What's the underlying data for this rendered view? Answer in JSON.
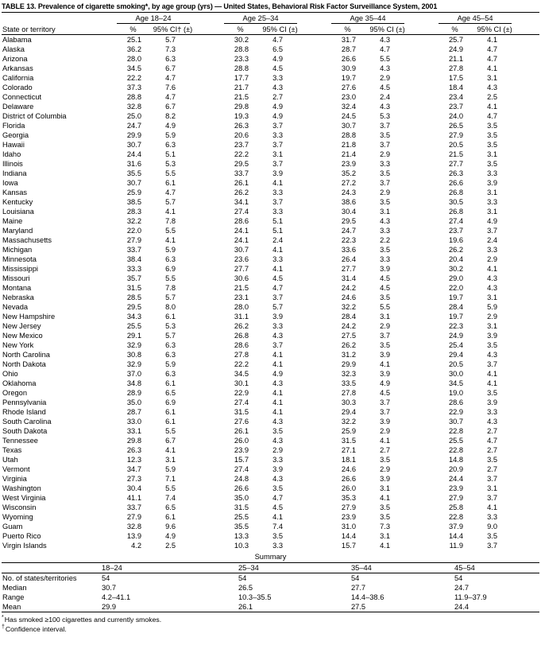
{
  "title": "TABLE 13. Prevalence of cigarette smoking*, by age group (yrs) — United States, Behavioral Risk Factor Surveillance System, 2001",
  "table": {
    "state_col_header": "State or territory",
    "group_headers": [
      "Age 18–24",
      "Age 25–34",
      "Age 35–44",
      "Age 45–54"
    ],
    "sub_headers": {
      "pct": "%",
      "ci": [
        "95% CI† (±)",
        "95% CI (±)",
        "95% CI (±)",
        "95% CI (±)"
      ]
    },
    "rows": [
      {
        "state": "Alabama",
        "values": [
          "25.1",
          "5.7",
          "30.2",
          "4.7",
          "31.7",
          "4.3",
          "25.7",
          "4.1"
        ]
      },
      {
        "state": "Alaska",
        "values": [
          "36.2",
          "7.3",
          "28.8",
          "6.5",
          "28.7",
          "4.7",
          "24.9",
          "4.7"
        ]
      },
      {
        "state": "Arizona",
        "values": [
          "28.0",
          "6.3",
          "23.3",
          "4.9",
          "26.6",
          "5.5",
          "21.1",
          "4.7"
        ]
      },
      {
        "state": "Arkansas",
        "values": [
          "34.5",
          "6.7",
          "28.8",
          "4.5",
          "30.9",
          "4.3",
          "27.8",
          "4.1"
        ]
      },
      {
        "state": "California",
        "values": [
          "22.2",
          "4.7",
          "17.7",
          "3.3",
          "19.7",
          "2.9",
          "17.5",
          "3.1"
        ]
      },
      {
        "state": "Colorado",
        "values": [
          "37.3",
          "7.6",
          "21.7",
          "4.3",
          "27.6",
          "4.5",
          "18.4",
          "4.3"
        ]
      },
      {
        "state": "Connecticut",
        "values": [
          "28.8",
          "4.7",
          "21.5",
          "2.7",
          "23.0",
          "2.4",
          "23.4",
          "2.5"
        ]
      },
      {
        "state": "Delaware",
        "values": [
          "32.8",
          "6.7",
          "29.8",
          "4.9",
          "32.4",
          "4.3",
          "23.7",
          "4.1"
        ]
      },
      {
        "state": "District of Columbia",
        "values": [
          "25.0",
          "8.2",
          "19.3",
          "4.9",
          "24.5",
          "5.3",
          "24.0",
          "4.7"
        ]
      },
      {
        "state": "Florida",
        "values": [
          "24.7",
          "4.9",
          "26.3",
          "3.7",
          "30.7",
          "3.7",
          "26.5",
          "3.5"
        ]
      },
      {
        "state": "Georgia",
        "values": [
          "29.9",
          "5.9",
          "20.6",
          "3.3",
          "28.8",
          "3.5",
          "27.9",
          "3.5"
        ]
      },
      {
        "state": "Hawaii",
        "values": [
          "30.7",
          "6.3",
          "23.7",
          "3.7",
          "21.8",
          "3.7",
          "20.5",
          "3.5"
        ]
      },
      {
        "state": "Idaho",
        "values": [
          "24.4",
          "5.1",
          "22.2",
          "3.1",
          "21.4",
          "2.9",
          "21.5",
          "3.1"
        ]
      },
      {
        "state": "Illinois",
        "values": [
          "31.6",
          "5.3",
          "29.5",
          "3.7",
          "23.9",
          "3.3",
          "27.7",
          "3.5"
        ]
      },
      {
        "state": "Indiana",
        "values": [
          "35.5",
          "5.5",
          "33.7",
          "3.9",
          "35.2",
          "3.5",
          "26.3",
          "3.3"
        ]
      },
      {
        "state": "Iowa",
        "values": [
          "30.7",
          "6.1",
          "26.1",
          "4.1",
          "27.2",
          "3.7",
          "26.6",
          "3.9"
        ]
      },
      {
        "state": "Kansas",
        "values": [
          "25.9",
          "4.7",
          "26.2",
          "3.3",
          "24.3",
          "2.9",
          "26.8",
          "3.1"
        ]
      },
      {
        "state": "Kentucky",
        "values": [
          "38.5",
          "5.7",
          "34.1",
          "3.7",
          "38.6",
          "3.5",
          "30.5",
          "3.3"
        ]
      },
      {
        "state": "Louisiana",
        "values": [
          "28.3",
          "4.1",
          "27.4",
          "3.3",
          "30.4",
          "3.1",
          "26.8",
          "3.1"
        ]
      },
      {
        "state": "Maine",
        "values": [
          "32.2",
          "7.8",
          "28.6",
          "5.1",
          "29.5",
          "4.3",
          "27.4",
          "4.9"
        ]
      },
      {
        "state": "Maryland",
        "values": [
          "22.0",
          "5.5",
          "24.1",
          "5.1",
          "24.7",
          "3.3",
          "23.7",
          "3.7"
        ]
      },
      {
        "state": "Massachusetts",
        "values": [
          "27.9",
          "4.1",
          "24.1",
          "2.4",
          "22.3",
          "2.2",
          "19.6",
          "2.4"
        ]
      },
      {
        "state": "Michigan",
        "values": [
          "33.7",
          "5.9",
          "30.7",
          "4.1",
          "33.6",
          "3.5",
          "26.2",
          "3.3"
        ]
      },
      {
        "state": "Minnesota",
        "values": [
          "38.4",
          "6.3",
          "23.6",
          "3.3",
          "26.4",
          "3.3",
          "20.4",
          "2.9"
        ]
      },
      {
        "state": "Mississippi",
        "values": [
          "33.3",
          "6.9",
          "27.7",
          "4.1",
          "27.7",
          "3.9",
          "30.2",
          "4.1"
        ]
      },
      {
        "state": "Missouri",
        "values": [
          "35.7",
          "5.5",
          "30.6",
          "4.5",
          "31.4",
          "4.5",
          "29.0",
          "4.3"
        ]
      },
      {
        "state": "Montana",
        "values": [
          "31.5",
          "7.8",
          "21.5",
          "4.7",
          "24.2",
          "4.5",
          "22.0",
          "4.3"
        ]
      },
      {
        "state": "Nebraska",
        "values": [
          "28.5",
          "5.7",
          "23.1",
          "3.7",
          "24.6",
          "3.5",
          "19.7",
          "3.1"
        ]
      },
      {
        "state": "Nevada",
        "values": [
          "29.5",
          "8.0",
          "28.0",
          "5.7",
          "32.2",
          "5.5",
          "28.4",
          "5.9"
        ]
      },
      {
        "state": "New Hampshire",
        "values": [
          "34.3",
          "6.1",
          "31.1",
          "3.9",
          "28.4",
          "3.1",
          "19.7",
          "2.9"
        ]
      },
      {
        "state": "New Jersey",
        "values": [
          "25.5",
          "5.3",
          "26.2",
          "3.3",
          "24.2",
          "2.9",
          "22.3",
          "3.1"
        ]
      },
      {
        "state": "New Mexico",
        "values": [
          "29.1",
          "5.7",
          "26.8",
          "4.3",
          "27.5",
          "3.7",
          "24.9",
          "3.9"
        ]
      },
      {
        "state": "New York",
        "values": [
          "32.9",
          "6.3",
          "28.6",
          "3.7",
          "26.2",
          "3.5",
          "25.4",
          "3.5"
        ]
      },
      {
        "state": "North Carolina",
        "values": [
          "30.8",
          "6.3",
          "27.8",
          "4.1",
          "31.2",
          "3.9",
          "29.4",
          "4.3"
        ]
      },
      {
        "state": "North Dakota",
        "values": [
          "32.9",
          "5.9",
          "22.2",
          "4.1",
          "29.9",
          "4.1",
          "20.5",
          "3.7"
        ]
      },
      {
        "state": "Ohio",
        "values": [
          "37.0",
          "6.3",
          "34.5",
          "4.9",
          "32.3",
          "3.9",
          "30.0",
          "4.1"
        ]
      },
      {
        "state": "Oklahoma",
        "values": [
          "34.8",
          "6.1",
          "30.1",
          "4.3",
          "33.5",
          "4.9",
          "34.5",
          "4.1"
        ]
      },
      {
        "state": "Oregon",
        "values": [
          "28.9",
          "6.5",
          "22.9",
          "4.1",
          "27.8",
          "4.5",
          "19.0",
          "3.5"
        ]
      },
      {
        "state": "Pennsylvania",
        "values": [
          "35.0",
          "6.9",
          "27.4",
          "4.1",
          "30.3",
          "3.7",
          "28.6",
          "3.9"
        ]
      },
      {
        "state": "Rhode Island",
        "values": [
          "28.7",
          "6.1",
          "31.5",
          "4.1",
          "29.4",
          "3.7",
          "22.9",
          "3.3"
        ]
      },
      {
        "state": "South Carolina",
        "values": [
          "33.0",
          "6.1",
          "27.6",
          "4.3",
          "32.2",
          "3.9",
          "30.7",
          "4.3"
        ]
      },
      {
        "state": "South Dakota",
        "values": [
          "33.1",
          "5.5",
          "26.1",
          "3.5",
          "25.9",
          "2.9",
          "22.8",
          "2.7"
        ]
      },
      {
        "state": "Tennessee",
        "values": [
          "29.8",
          "6.7",
          "26.0",
          "4.3",
          "31.5",
          "4.1",
          "25.5",
          "4.7"
        ]
      },
      {
        "state": "Texas",
        "values": [
          "26.3",
          "4.1",
          "23.9",
          "2.9",
          "27.1",
          "2.7",
          "22.8",
          "2.7"
        ]
      },
      {
        "state": "Utah",
        "values": [
          "12.3",
          "3.1",
          "15.7",
          "3.3",
          "18.1",
          "3.5",
          "14.8",
          "3.5"
        ]
      },
      {
        "state": "Vermont",
        "values": [
          "34.7",
          "5.9",
          "27.4",
          "3.9",
          "24.6",
          "2.9",
          "20.9",
          "2.7"
        ]
      },
      {
        "state": "Virginia",
        "values": [
          "27.3",
          "7.1",
          "24.8",
          "4.3",
          "26.6",
          "3.9",
          "24.4",
          "3.7"
        ]
      },
      {
        "state": "Washington",
        "values": [
          "30.4",
          "5.5",
          "26.6",
          "3.5",
          "26.0",
          "3.1",
          "23.9",
          "3.1"
        ]
      },
      {
        "state": "West Virginia",
        "values": [
          "41.1",
          "7.4",
          "35.0",
          "4.7",
          "35.3",
          "4.1",
          "27.9",
          "3.7"
        ]
      },
      {
        "state": "Wisconsin",
        "values": [
          "33.7",
          "6.5",
          "31.5",
          "4.5",
          "27.9",
          "3.5",
          "25.8",
          "4.1"
        ]
      },
      {
        "state": "Wyoming",
        "values": [
          "27.9",
          "6.1",
          "25.5",
          "4.1",
          "23.9",
          "3.5",
          "22.8",
          "3.3"
        ]
      },
      {
        "state": "Guam",
        "values": [
          "32.8",
          "9.6",
          "35.5",
          "7.4",
          "31.0",
          "7.3",
          "37.9",
          "9.0"
        ]
      },
      {
        "state": "Puerto Rico",
        "values": [
          "13.9",
          "4.9",
          "13.3",
          "3.5",
          "14.4",
          "3.1",
          "14.4",
          "3.5"
        ]
      },
      {
        "state": "Virgin Islands",
        "values": [
          "4.2",
          "2.5",
          "10.3",
          "3.3",
          "15.7",
          "4.1",
          "11.9",
          "3.7"
        ]
      }
    ]
  },
  "summary": {
    "title": "Summary",
    "group_headers": [
      "18–24",
      "25–34",
      "35–44",
      "45–54"
    ],
    "rows": [
      {
        "label": "No. of states/territories",
        "values": [
          "54",
          "54",
          "54",
          "54"
        ]
      },
      {
        "label": "Median",
        "values": [
          "30.7",
          "26.5",
          "27.7",
          "24.7"
        ]
      },
      {
        "label": "Range",
        "values": [
          "4.2–41.1",
          "10.3–35.5",
          "14.4–38.6",
          "11.9–37.9"
        ]
      },
      {
        "label": "Mean",
        "values": [
          "29.9",
          "26.1",
          "27.5",
          "24.4"
        ]
      }
    ]
  },
  "footnotes": [
    {
      "marker": "*",
      "text": "Has smoked ≥100 cigarettes and currently smokes."
    },
    {
      "marker": "†",
      "text": "Confidence interval."
    }
  ]
}
